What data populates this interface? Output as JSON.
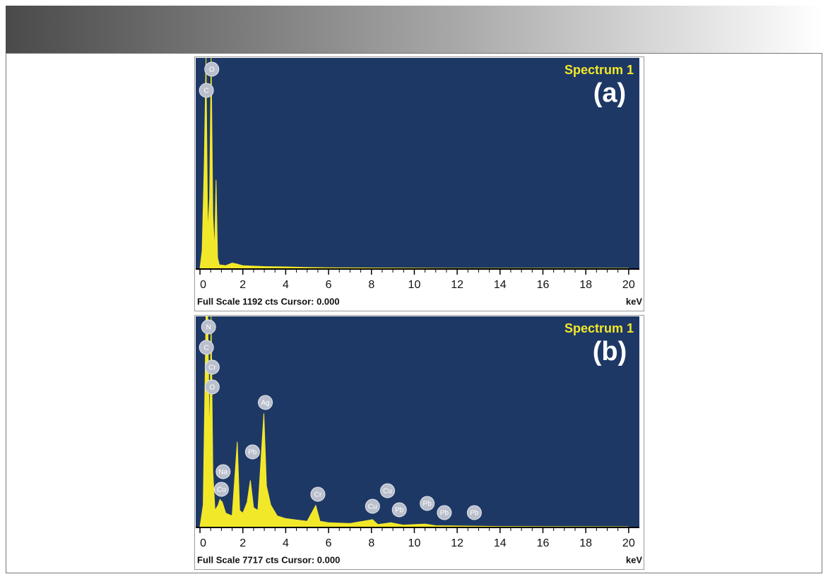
{
  "chart_data": [
    {
      "type": "area",
      "title": "Spectrum 1",
      "panel_label": "(a)",
      "footer": "Full Scale 1192 cts Cursor: 0.000",
      "x_unit": "keV",
      "color": "#f2e82a",
      "xlim": [
        -0.2,
        20.5
      ],
      "ylim": [
        0,
        1192
      ],
      "xticks": [
        0,
        2,
        4,
        6,
        8,
        10,
        12,
        14,
        16,
        18,
        20
      ],
      "x": [
        0,
        0.1,
        0.2,
        0.28,
        0.36,
        0.45,
        0.52,
        0.6,
        0.68,
        0.75,
        0.82,
        0.9,
        1.2,
        1.5,
        1.7,
        2,
        3,
        4,
        5,
        6,
        8,
        10,
        12,
        14,
        16,
        18,
        20
      ],
      "values": [
        0,
        100,
        600,
        1192,
        200,
        400,
        1192,
        300,
        100,
        500,
        60,
        20,
        15,
        30,
        25,
        15,
        10,
        8,
        5,
        3,
        2,
        1,
        0,
        0,
        0,
        0,
        0
      ],
      "peak_labels": [
        {
          "label": "O",
          "x": 0.55
        },
        {
          "label": "C",
          "x": 0.3
        }
      ]
    },
    {
      "type": "area",
      "title": "Spectrum 1",
      "panel_label": "(b)",
      "footer": "Full Scale 7717 cts Cursor: 0.000",
      "x_unit": "keV",
      "color": "#f2e82a",
      "xlim": [
        -0.2,
        20.5
      ],
      "ylim": [
        0,
        7717
      ],
      "xticks": [
        0,
        2,
        4,
        6,
        8,
        10,
        12,
        14,
        16,
        18,
        20
      ],
      "x": [
        0,
        0.15,
        0.28,
        0.36,
        0.45,
        0.52,
        0.6,
        0.7,
        0.85,
        0.93,
        1.04,
        1.2,
        1.5,
        1.74,
        1.85,
        2.0,
        2.2,
        2.35,
        2.5,
        2.7,
        2.98,
        3.1,
        3.3,
        3.6,
        4,
        4.5,
        5,
        5.4,
        5.6,
        6,
        7,
        8.05,
        8.3,
        8.9,
        9.5,
        10.5,
        11,
        12,
        13,
        14,
        16,
        18,
        20
      ],
      "values": [
        0,
        800,
        7717,
        7717,
        3000,
        7717,
        2000,
        600,
        800,
        1000,
        900,
        500,
        400,
        3118,
        600,
        500,
        900,
        1700,
        700,
        600,
        4157,
        1500,
        800,
        400,
        300,
        250,
        200,
        780,
        200,
        150,
        120,
        260,
        80,
        150,
        60,
        100,
        40,
        30,
        20,
        10,
        5,
        2,
        0
      ],
      "peak_labels": [
        {
          "label": "N",
          "x": 0.4
        },
        {
          "label": "C",
          "x": 0.3
        },
        {
          "label": "Cr",
          "x": 0.57
        },
        {
          "label": "O",
          "x": 0.57
        },
        {
          "label": "Ag",
          "x": 3.05
        },
        {
          "label": "Pb",
          "x": 2.45
        },
        {
          "label": "Na",
          "x": 1.08
        },
        {
          "label": "Cu",
          "x": 1.0
        },
        {
          "label": "Cr",
          "x": 5.5
        },
        {
          "label": "Cu",
          "x": 8.75
        },
        {
          "label": "Cu",
          "x": 8.05
        },
        {
          "label": "Pb",
          "x": 9.3
        },
        {
          "label": "Pb",
          "x": 10.6
        },
        {
          "label": "Pb",
          "x": 11.4
        },
        {
          "label": "Pb",
          "x": 12.8
        }
      ]
    }
  ]
}
